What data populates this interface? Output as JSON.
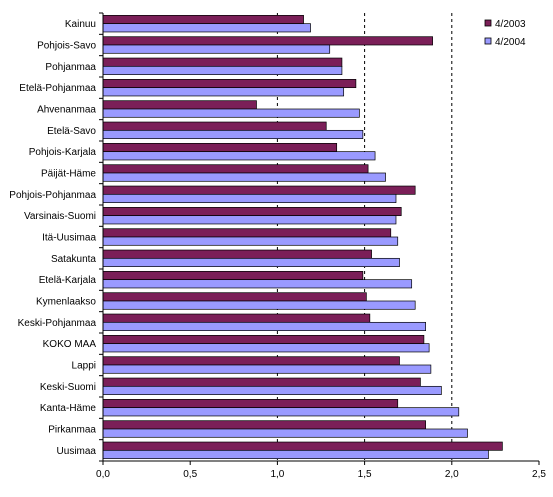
{
  "chart_data": {
    "type": "bar",
    "orientation": "horizontal",
    "categories": [
      "Kainuu",
      "Pohjois-Savo",
      "Pohjanmaa",
      "Etelä-Pohjanmaa",
      "Ahvenanmaa",
      "Etelä-Savo",
      "Pohjois-Karjala",
      "Päijät-Häme",
      "Pohjois-Pohjanmaa",
      "Varsinais-Suomi",
      "Itä-Uusimaa",
      "Satakunta",
      "Etelä-Karjala",
      "Kymenlaakso",
      "Keski-Pohjanmaa",
      "KOKO MAA",
      "Lappi",
      "Keski-Suomi",
      "Kanta-Häme",
      "Pirkanmaa",
      "Uusimaa"
    ],
    "series": [
      {
        "name": "4/2003",
        "color": "#7b1f58",
        "values": [
          1.15,
          1.89,
          1.37,
          1.45,
          0.88,
          1.28,
          1.34,
          1.52,
          1.79,
          1.71,
          1.65,
          1.54,
          1.49,
          1.51,
          1.53,
          1.84,
          1.7,
          1.82,
          1.69,
          1.85,
          2.29
        ]
      },
      {
        "name": "4/2004",
        "color": "#9a9aff",
        "values": [
          1.19,
          1.3,
          1.37,
          1.38,
          1.47,
          1.49,
          1.56,
          1.62,
          1.68,
          1.68,
          1.69,
          1.7,
          1.77,
          1.79,
          1.85,
          1.87,
          1.88,
          1.94,
          2.04,
          2.09,
          2.21
        ]
      }
    ],
    "xlim": [
      0,
      2.5
    ],
    "xticks": [
      "0,0",
      "0,5",
      "1,0",
      "1,5",
      "2,0",
      "2,5"
    ],
    "xtick_values": [
      0,
      0.5,
      1.0,
      1.5,
      2.0,
      2.5
    ],
    "reference_lines": [
      1.0,
      1.5,
      2.0
    ],
    "legend_position": "top-right",
    "grid": false,
    "title": "",
    "xlabel": "",
    "ylabel": ""
  }
}
